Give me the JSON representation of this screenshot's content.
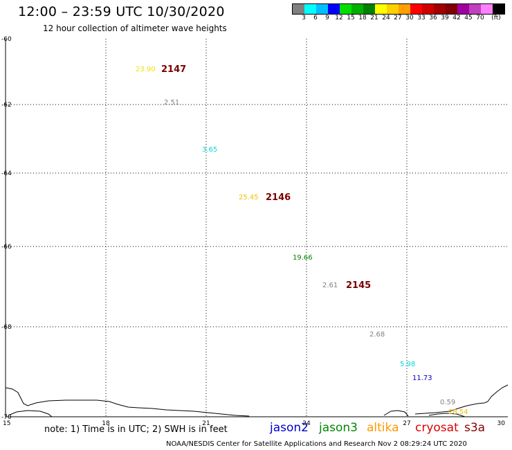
{
  "header": {
    "title": "12:00 – 23:59 UTC 10/30/2020",
    "subtitle": "12 hour collection of altimeter wave heights"
  },
  "colorbar": {
    "colors": [
      "#808080",
      "#00ffff",
      "#00bfff",
      "#0000ff",
      "#00e000",
      "#00b000",
      "#008000",
      "#ffff00",
      "#ffd000",
      "#ffa000",
      "#ff0000",
      "#d00000",
      "#a00000",
      "#800000",
      "#a000a0",
      "#c040c0",
      "#ff80ff",
      "#000000"
    ],
    "labels": [
      "3",
      "6",
      "9",
      "12",
      "15",
      "18",
      "21",
      "24",
      "27",
      "30",
      "33",
      "36",
      "39",
      "42",
      "45",
      "70",
      "(ft)"
    ]
  },
  "map": {
    "lon_ticks": [
      "15",
      "18",
      "21",
      "24",
      "27",
      "30"
    ],
    "lat_ticks": [
      "-60",
      "-62",
      "-64",
      "-66",
      "-68",
      "-70"
    ],
    "wave_heights": [
      {
        "text": "23.90",
        "color": "#f0e000"
      },
      {
        "text": "2.51",
        "color": "#808080"
      },
      {
        "text": "3.65",
        "color": "#00d8d8"
      },
      {
        "text": "25.45",
        "color": "#f0c000"
      },
      {
        "text": "19.66",
        "color": "#008000"
      },
      {
        "text": "2.61",
        "color": "#808080"
      },
      {
        "text": "2.68",
        "color": "#808080"
      },
      {
        "text": "5.98",
        "color": "#00d8d8"
      },
      {
        "text": "11.73",
        "color": "#0000c0"
      },
      {
        "text": "0.59",
        "color": "#808080"
      },
      {
        "text": "28.54",
        "color": "#f0c000"
      }
    ],
    "pass_times": [
      "2147",
      "2146",
      "2145"
    ]
  },
  "footer": {
    "note": "note: 1) Time is in UTC; 2) SWH is in feet",
    "satellites": [
      {
        "name": "jason2",
        "color": "#0000cc"
      },
      {
        "name": "jason3",
        "color": "#008800"
      },
      {
        "name": "altika",
        "color": "#ff9900"
      },
      {
        "name": "cryosat",
        "color": "#dd0000"
      },
      {
        "name": "s3a",
        "color": "#880000"
      }
    ],
    "credit": "NOAA/NESDIS Center for Satellite Applications and Research    Nov  2 08:29:24 UTC 2020"
  }
}
